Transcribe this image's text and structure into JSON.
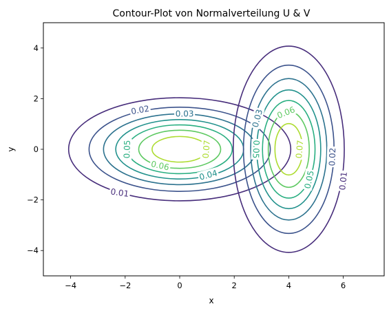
{
  "chart_data": {
    "type": "contour",
    "title": "Contour-Plot von Normalverteilung U & V",
    "xlabel": "x",
    "ylabel": "y",
    "xlim": [
      -5,
      7.5
    ],
    "ylim": [
      -5,
      5
    ],
    "xticks": [
      {
        "value": -4,
        "label": "−4"
      },
      {
        "value": -2,
        "label": "−2"
      },
      {
        "value": 0,
        "label": "0"
      },
      {
        "value": 2,
        "label": "2"
      },
      {
        "value": 4,
        "label": "4"
      },
      {
        "value": 6,
        "label": "6"
      }
    ],
    "yticks": [
      {
        "value": -4,
        "label": "−4"
      },
      {
        "value": -2,
        "label": "−2"
      },
      {
        "value": 0,
        "label": "0"
      },
      {
        "value": 2,
        "label": "2"
      },
      {
        "value": 4,
        "label": "4"
      }
    ],
    "grid": false,
    "levels": [
      0.01,
      0.02,
      0.03,
      0.04,
      0.05,
      0.06,
      0.07
    ],
    "level_colors": [
      "#472d7b",
      "#3b528b",
      "#2c728e",
      "#21918c",
      "#28ae80",
      "#5ec962",
      "#addc30"
    ],
    "distributions": [
      {
        "center": [
          0,
          0
        ],
        "sigma_x": 2,
        "sigma_y": 1
      },
      {
        "center": [
          4,
          0
        ],
        "sigma_x": 1,
        "sigma_y": 2
      }
    ],
    "labels": [
      {
        "text": "0.01",
        "x": -2.2,
        "y": -1.72,
        "angle": 8,
        "level": 0.01
      },
      {
        "text": "0.02",
        "x": -1.45,
        "y": 1.55,
        "angle": -10,
        "level": 0.02
      },
      {
        "text": "0.03",
        "x": 0.18,
        "y": 1.4,
        "angle": 0,
        "level": 0.03
      },
      {
        "text": "0.04",
        "x": 1.05,
        "y": -1.02,
        "angle": -15,
        "level": 0.04
      },
      {
        "text": "0.05",
        "x": -1.93,
        "y": 0.0,
        "angle": -88,
        "level": 0.05
      },
      {
        "text": "0.06",
        "x": -0.72,
        "y": -0.65,
        "angle": 12,
        "level": 0.06
      },
      {
        "text": "0.07",
        "x": 0.98,
        "y": 0.0,
        "angle": -85,
        "level": 0.07
      },
      {
        "text": "0.03",
        "x": 2.85,
        "y": 1.22,
        "angle": -75,
        "level": 0.03
      },
      {
        "text": "0.05",
        "x": 2.8,
        "y": 0.0,
        "angle": 92,
        "level": 0.05
      },
      {
        "text": "0.06",
        "x": 3.9,
        "y": 1.45,
        "angle": -22,
        "level": 0.06
      },
      {
        "text": "0.07",
        "x": 4.4,
        "y": 0.0,
        "angle": -85,
        "level": 0.07
      },
      {
        "text": "0.05",
        "x": 4.75,
        "y": -1.2,
        "angle": -78,
        "level": 0.05
      },
      {
        "text": "0.02",
        "x": 5.6,
        "y": -0.3,
        "angle": -88,
        "level": 0.02
      },
      {
        "text": "0.01",
        "x": 6.0,
        "y": -1.25,
        "angle": -84,
        "level": 0.01
      }
    ]
  }
}
